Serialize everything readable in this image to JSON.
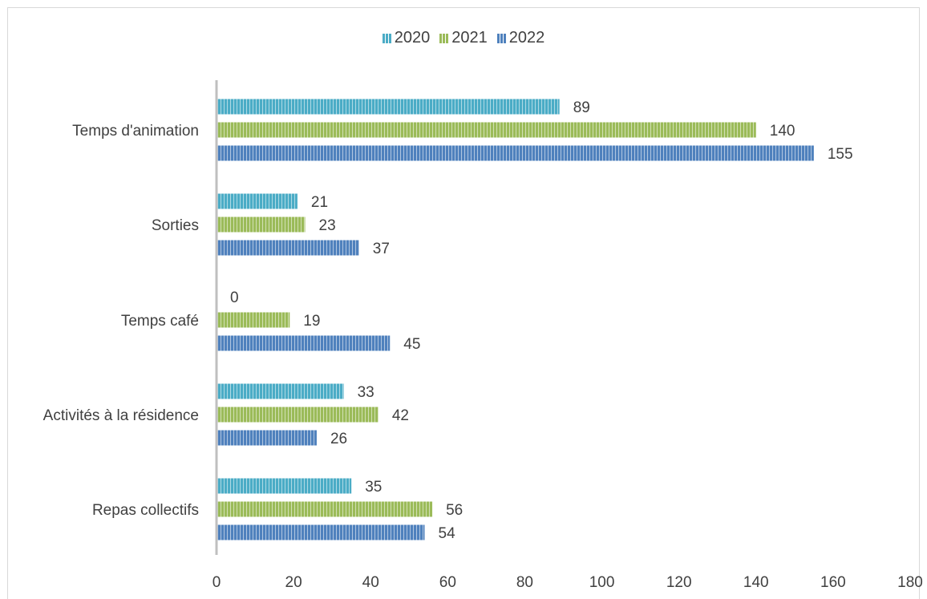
{
  "chart_data": {
    "type": "bar",
    "orientation": "horizontal",
    "categories": [
      "Temps d'animation",
      "Sorties",
      "Temps café",
      "Activités à la résidence",
      "Repas collectifs"
    ],
    "series": [
      {
        "name": "2020",
        "color": "#4bacc6",
        "values": [
          89,
          21,
          0,
          33,
          35
        ]
      },
      {
        "name": "2021",
        "color": "#9bbb59",
        "values": [
          140,
          23,
          19,
          42,
          56
        ]
      },
      {
        "name": "2022",
        "color": "#4f81bd",
        "values": [
          155,
          37,
          45,
          26,
          54
        ]
      }
    ],
    "xlim": [
      0,
      180
    ],
    "xticks": [
      "0",
      "20",
      "40",
      "60",
      "80",
      "100",
      "120",
      "140",
      "160",
      "180"
    ],
    "legend_position": "top",
    "grid": false,
    "bar_pattern": "vertical-stripes"
  }
}
